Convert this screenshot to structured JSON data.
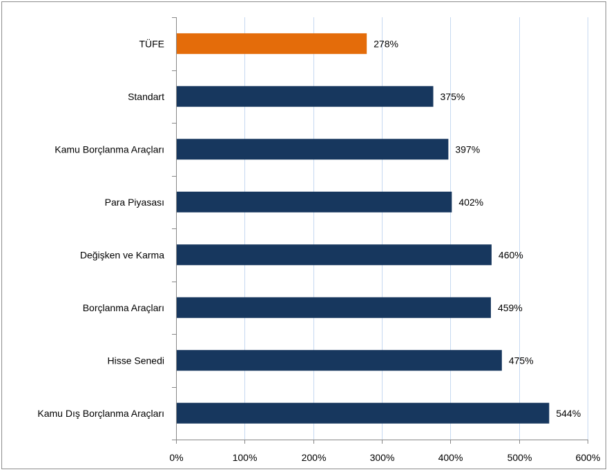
{
  "chart_data": {
    "type": "bar",
    "orientation": "horizontal",
    "categories": [
      "TÜFE",
      "Standart",
      "Kamu Borçlanma Araçları",
      "Para Piyasası",
      "Değişken ve Karma",
      "Borçlanma Araçları",
      "Hisse Senedi",
      "Kamu Dış Borçlanma Araçları"
    ],
    "values": [
      278,
      375,
      397,
      402,
      460,
      459,
      475,
      544
    ],
    "value_labels": [
      "278%",
      "375%",
      "397%",
      "402%",
      "460%",
      "459%",
      "475%",
      "544%"
    ],
    "bar_colors": [
      "#E46C0A",
      "#17375E",
      "#17375E",
      "#17375E",
      "#17375E",
      "#17375E",
      "#17375E",
      "#17375E"
    ],
    "title": "",
    "xlabel": "",
    "ylabel": "",
    "xlim": [
      0,
      600
    ],
    "xticks": [
      0,
      100,
      200,
      300,
      400,
      500,
      600
    ],
    "xtick_labels": [
      "0%",
      "100%",
      "200%",
      "300%",
      "400%",
      "500%",
      "600%"
    ],
    "grid": "vertical",
    "legend": "none"
  }
}
